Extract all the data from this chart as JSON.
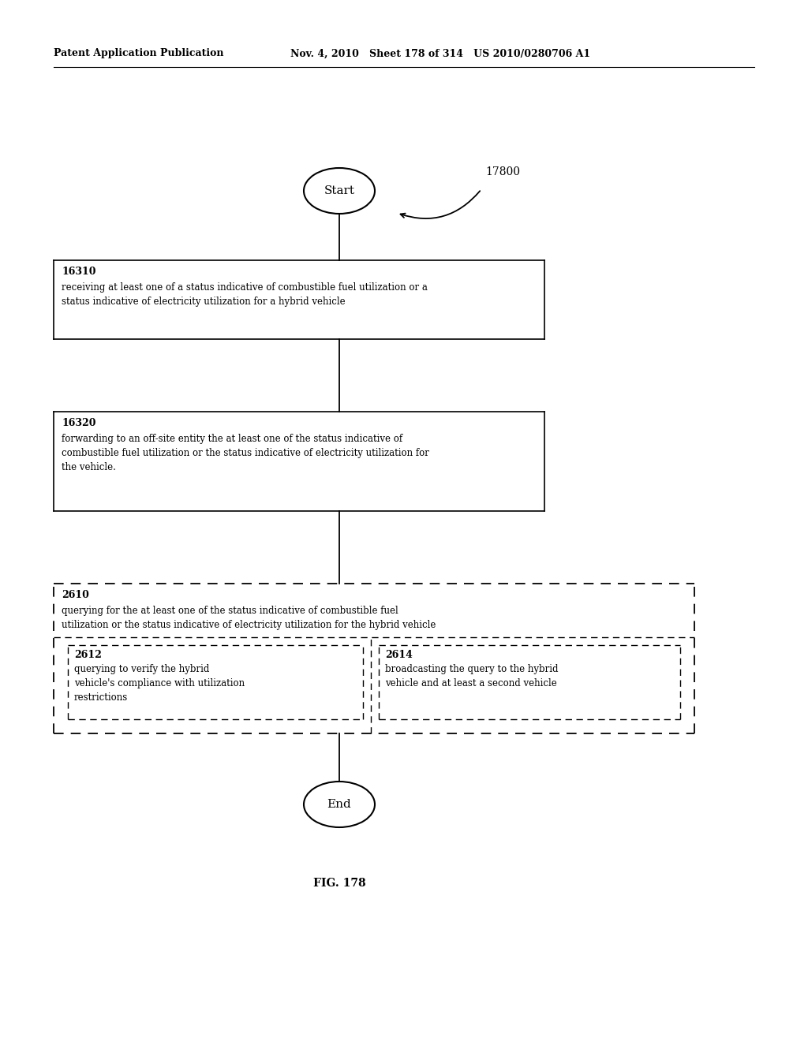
{
  "header_left": "Patent Application Publication",
  "header_mid": "Nov. 4, 2010   Sheet 178 of 314   US 2010/0280706 A1",
  "fig_label": "FIG. 178",
  "diagram_label": "17800",
  "start_label": "Start",
  "end_label": "End",
  "box1_id": "16310",
  "box1_line1": "receiving at least one of a status indicative of combustible fuel utilization or a",
  "box1_line2": "status indicative of electricity utilization for a hybrid vehicle",
  "box2_id": "16320",
  "box2_line1": "forwarding to an off-site entity the at least one of the status indicative of",
  "box2_line2": "combustible fuel utilization or the status indicative of electricity utilization for",
  "box2_line3": "the vehicle.",
  "outer_dashed_id": "2610",
  "outer_line1": "querying for the at least one of the status indicative of combustible fuel",
  "outer_line2": "utilization or the status indicative of electricity utilization for the hybrid vehicle",
  "inner_left_id": "2612",
  "inner_left_line1": "querying to verify the hybrid",
  "inner_left_line2": "vehicle's compliance with utilization",
  "inner_left_line3": "restrictions",
  "inner_right_id": "2614",
  "inner_right_line1": "broadcasting the query to the hybrid",
  "inner_right_line2": "vehicle and at least a second vehicle",
  "bg_color": "#ffffff",
  "text_color": "#000000"
}
